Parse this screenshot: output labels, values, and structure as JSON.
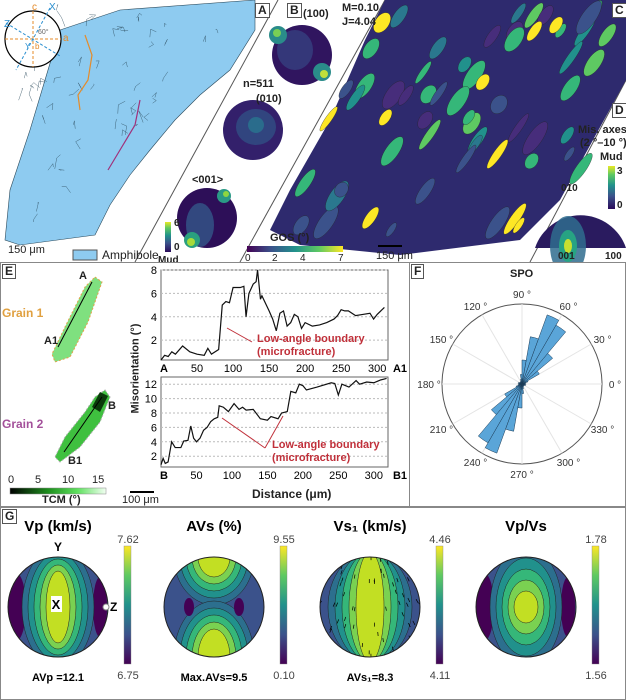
{
  "panels": {
    "a": "A",
    "b": "B",
    "c": "C",
    "d": "D",
    "e": "E",
    "f": "F",
    "g": "G"
  },
  "panel_a": {
    "compass": {
      "c": "c",
      "a": "a",
      "b": "b",
      "x": "X",
      "z": "Z",
      "y": "Y",
      "angle": "60°"
    },
    "scale": "150 μm",
    "legend": "Amphibole",
    "legend_color": "#8ecbf0"
  },
  "panel_b": {
    "pf_100": "(100)",
    "pf_010": "(010)",
    "pf_001": "<001>",
    "n": "n=511",
    "m": "M=0.10",
    "j": "J=4.04",
    "cbar_max": "6",
    "cbar_min": "0",
    "cbar_label": "Mud"
  },
  "panel_c": {
    "cbar_label": "GOS (°)",
    "ticks": [
      "0",
      "2",
      "4",
      "7"
    ],
    "scale": "150 μm"
  },
  "panel_d": {
    "title1": "Mis. axes",
    "title2": "(2 °–10 °)",
    "cbar_label": "Mud",
    "cbar_max": "3",
    "cbar_min": "0",
    "l010": "010",
    "l001": "001",
    "l100": "100"
  },
  "panel_e": {
    "grain1": "Grain 1",
    "grain2": "Grain 2",
    "a": "A",
    "a1": "A1",
    "b": "B",
    "b1": "B1",
    "tcm_ticks": [
      "0",
      "5",
      "10",
      "15"
    ],
    "tcm_label": "TCM (°)",
    "scale": "100 μm",
    "annot1": "Low-angle boundary",
    "annot2": "(microfracture)"
  },
  "chart_data": [
    {
      "type": "line",
      "title": "",
      "xlabel": "Distance (μm)",
      "ylabel": "Misorientation (°)",
      "xlim": [
        0,
        315
      ],
      "ylim": [
        0.3,
        8
      ],
      "x_ticks": [
        "A",
        "50",
        "100",
        "150",
        "200",
        "250",
        "300",
        "A1"
      ],
      "y_ticks": [
        "2",
        "4",
        "6",
        "8"
      ],
      "grid": "horizontal dashed",
      "series": [
        {
          "name": "A–A1",
          "points": [
            [
              0,
              0.3
            ],
            [
              5,
              0.7
            ],
            [
              10,
              0.6
            ],
            [
              15,
              1
            ],
            [
              20,
              0.8
            ],
            [
              30,
              1.5
            ],
            [
              40,
              1
            ],
            [
              50,
              0.8
            ],
            [
              60,
              0.7
            ],
            [
              65,
              1.3
            ],
            [
              70,
              0.8
            ],
            [
              80,
              1.2
            ],
            [
              85,
              5
            ],
            [
              90,
              5.3
            ],
            [
              95,
              5.2
            ],
            [
              100,
              6.5
            ],
            [
              110,
              6.5
            ],
            [
              115,
              6.6
            ],
            [
              118,
              4
            ],
            [
              122,
              6
            ],
            [
              128,
              6.8
            ],
            [
              132,
              7
            ],
            [
              134,
              8
            ],
            [
              138,
              5.5
            ],
            [
              140,
              5.8
            ],
            [
              150,
              4.5
            ],
            [
              155,
              3.8
            ],
            [
              160,
              2.8
            ],
            [
              165,
              4.3
            ],
            [
              170,
              4.5
            ],
            [
              175,
              3.2
            ],
            [
              180,
              3.5
            ],
            [
              185,
              4.2
            ],
            [
              190,
              4
            ],
            [
              195,
              3
            ],
            [
              200,
              3.5
            ],
            [
              210,
              3.2
            ],
            [
              220,
              3.3
            ],
            [
              230,
              3.5
            ],
            [
              240,
              3.8
            ],
            [
              245,
              4.1
            ],
            [
              250,
              4.6
            ],
            [
              255,
              4.5
            ],
            [
              260,
              4.5
            ],
            [
              270,
              4.1
            ],
            [
              280,
              4.2
            ],
            [
              290,
              4.3
            ],
            [
              295,
              3.8
            ],
            [
              300,
              4.2
            ],
            [
              310,
              4.8
            ]
          ]
        }
      ]
    },
    {
      "type": "line",
      "title": "",
      "xlabel": "Distance (μm)",
      "ylabel": "Misorientation (°)",
      "xlim": [
        0,
        320
      ],
      "ylim": [
        0.5,
        13
      ],
      "x_ticks": [
        "B",
        "50",
        "100",
        "150",
        "200",
        "250",
        "300",
        "B1"
      ],
      "y_ticks": [
        "2",
        "4",
        "6",
        "8",
        "10",
        "12"
      ],
      "grid": "horizontal dashed",
      "series": [
        {
          "name": "B–B1",
          "points": [
            [
              0,
              0.8
            ],
            [
              3,
              1.7
            ],
            [
              6,
              1
            ],
            [
              10,
              1.2
            ],
            [
              15,
              4
            ],
            [
              20,
              3.2
            ],
            [
              28,
              3.2
            ],
            [
              32,
              4.1
            ],
            [
              38,
              4.2
            ],
            [
              42,
              6.2
            ],
            [
              46,
              4.5
            ],
            [
              50,
              4
            ],
            [
              55,
              4.5
            ],
            [
              60,
              5.6
            ],
            [
              65,
              6
            ],
            [
              70,
              6.8
            ],
            [
              75,
              7.2
            ],
            [
              80,
              7.4
            ],
            [
              82,
              9
            ],
            [
              88,
              8.8
            ],
            [
              95,
              8.2
            ],
            [
              103,
              9.3
            ],
            [
              110,
              8.5
            ],
            [
              115,
              8.8
            ],
            [
              120,
              8.4
            ],
            [
              130,
              8.5
            ],
            [
              140,
              7.2
            ],
            [
              150,
              7
            ],
            [
              155,
              7.5
            ],
            [
              165,
              7.2
            ],
            [
              170,
              8
            ],
            [
              178,
              8.2
            ],
            [
              183,
              11
            ],
            [
              190,
              10.8
            ],
            [
              195,
              12
            ],
            [
              200,
              11.8
            ],
            [
              205,
              11.2
            ],
            [
              220,
              11.6
            ],
            [
              240,
              12.2
            ],
            [
              245,
              12.1
            ],
            [
              250,
              10.5
            ],
            [
              255,
              12
            ],
            [
              265,
              11.6
            ],
            [
              275,
              12.5
            ],
            [
              280,
              12
            ],
            [
              290,
              12.3
            ],
            [
              300,
              12.2
            ],
            [
              310,
              12.6
            ],
            [
              318,
              12.8
            ]
          ]
        }
      ]
    },
    {
      "type": "rose",
      "title": "SPO",
      "angle_labels": [
        "0 °",
        "30 °",
        "60 °",
        "90 °",
        "120 °",
        "150 °",
        "180 °",
        "210 °",
        "240 °",
        "270 °",
        "300 °",
        "330 °"
      ],
      "bin_width_deg": 10,
      "bins_deg": [
        0,
        10,
        20,
        30,
        40,
        50,
        60,
        70,
        80,
        90,
        100,
        110,
        120,
        130,
        140,
        150,
        160,
        170
      ],
      "relative_values": [
        0.04,
        0.05,
        0.08,
        0.25,
        0.5,
        0.85,
        0.92,
        0.6,
        0.3,
        0.12,
        0.06,
        0.04,
        0.03,
        0.03,
        0.03,
        0.04,
        0.05,
        0.04
      ],
      "color": "#5aa5d8"
    }
  ],
  "panel_g": {
    "plots": [
      {
        "title": "Vp (km/s)",
        "max": "7.62",
        "min": "6.75",
        "caption": "AVp =12.1",
        "y": "Y",
        "x": "X",
        "z": "Z"
      },
      {
        "title": "AVs (%)",
        "max": "9.55",
        "min": "0.10",
        "caption": "Max.AVs=9.5"
      },
      {
        "title": "Vs₁ (km/s)",
        "max": "4.46",
        "min": "4.11",
        "caption": "AVs₁=8.3"
      },
      {
        "title": "Vp/Vs",
        "max": "1.78",
        "min": "1.56",
        "caption": ""
      }
    ]
  }
}
